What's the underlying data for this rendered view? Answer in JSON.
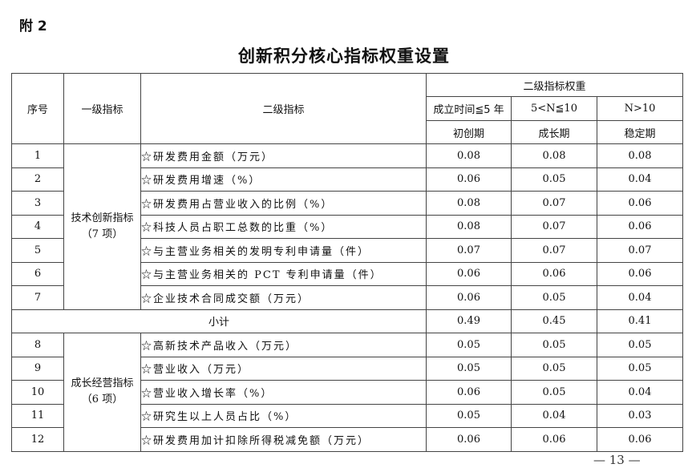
{
  "annex_label": "附 2",
  "title": "创新积分核心指标权重设置",
  "header": {
    "seq": "序号",
    "level1": "一级指标",
    "level2": "二级指标",
    "weights": "二级指标权重",
    "stages": [
      {
        "range": "成立时间≦5 年",
        "name": "初创期"
      },
      {
        "range": "5<N≦10",
        "name": "成长期"
      },
      {
        "range": "N>10",
        "name": "稳定期"
      }
    ]
  },
  "groups": [
    {
      "name": "技术创新指标",
      "count": "（7 项）",
      "rows": [
        {
          "seq": "1",
          "indicator": "☆研发费用金额（万元）",
          "w": [
            "0.08",
            "0.08",
            "0.08"
          ]
        },
        {
          "seq": "2",
          "indicator": "☆研发费用增速（%）",
          "w": [
            "0.06",
            "0.05",
            "0.04"
          ]
        },
        {
          "seq": "3",
          "indicator": "☆研发费用占营业收入的比例（%）",
          "w": [
            "0.08",
            "0.07",
            "0.06"
          ]
        },
        {
          "seq": "4",
          "indicator": "☆科技人员占职工总数的比重（%）",
          "w": [
            "0.08",
            "0.07",
            "0.06"
          ]
        },
        {
          "seq": "5",
          "indicator": "☆与主营业务相关的发明专利申请量（件）",
          "w": [
            "0.07",
            "0.07",
            "0.07"
          ]
        },
        {
          "seq": "6",
          "indicator": "☆与主营业务相关的 PCT 专利申请量（件）",
          "w": [
            "0.06",
            "0.06",
            "0.06"
          ]
        },
        {
          "seq": "7",
          "indicator": "☆企业技术合同成交额（万元）",
          "w": [
            "0.06",
            "0.05",
            "0.04"
          ]
        }
      ],
      "subtotal": {
        "label": "小计",
        "w": [
          "0.49",
          "0.45",
          "0.41"
        ]
      }
    },
    {
      "name": "成长经营指标",
      "count": "（6 项）",
      "rows": [
        {
          "seq": "8",
          "indicator": "☆高新技术产品收入（万元）",
          "w": [
            "0.05",
            "0.05",
            "0.05"
          ]
        },
        {
          "seq": "9",
          "indicator": "☆营业收入（万元）",
          "w": [
            "0.05",
            "0.05",
            "0.05"
          ]
        },
        {
          "seq": "10",
          "indicator": "☆营业收入增长率（%）",
          "w": [
            "0.06",
            "0.05",
            "0.04"
          ]
        },
        {
          "seq": "11",
          "indicator": "☆研究生以上人员占比（%）",
          "w": [
            "0.05",
            "0.04",
            "0.03"
          ]
        },
        {
          "seq": "12",
          "indicator": "☆研发费用加计扣除所得税减免额（万元）",
          "w": [
            "0.06",
            "0.06",
            "0.06"
          ]
        }
      ]
    }
  ],
  "page_number": "— 13 —"
}
